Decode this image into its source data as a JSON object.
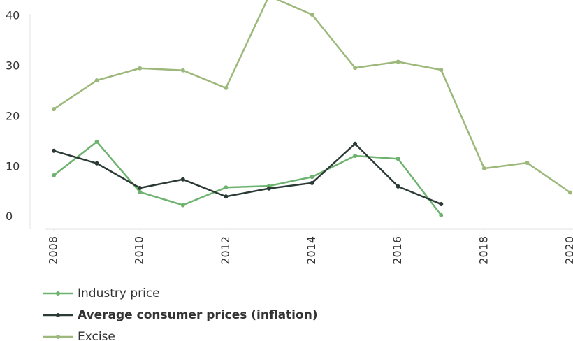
{
  "chart_data": {
    "type": "line",
    "x": [
      2008,
      2009,
      2010,
      2011,
      2012,
      2013,
      2014,
      2015,
      2016,
      2017,
      2018,
      2019,
      2020
    ],
    "xlim": [
      2008,
      2020
    ],
    "xticks": [
      2008,
      2010,
      2012,
      2014,
      2016,
      2018,
      2020
    ],
    "ylim": [
      -2.4,
      40
    ],
    "yticks": [
      0,
      10,
      20,
      30,
      40
    ],
    "series": [
      {
        "name": "Industry price",
        "color": "#6db36f",
        "values": [
          8.3,
          15,
          5,
          2.4,
          5.9,
          6.2,
          8,
          12.2,
          11.6,
          0.4,
          null,
          null,
          null
        ]
      },
      {
        "name": "Average consumer prices (inflation)",
        "color": "#2b3a35",
        "values": [
          13.2,
          10.7,
          5.8,
          7.5,
          4.1,
          5.7,
          6.8,
          14.6,
          6.1,
          2.6,
          null,
          null,
          null
        ]
      },
      {
        "name": "Excise",
        "color": "#9cb87a",
        "values": [
          21.5,
          27.2,
          29.6,
          29.2,
          25.7,
          44,
          40.3,
          29.7,
          30.9,
          29.3,
          9.7,
          10.8,
          4.9
        ]
      }
    ]
  }
}
